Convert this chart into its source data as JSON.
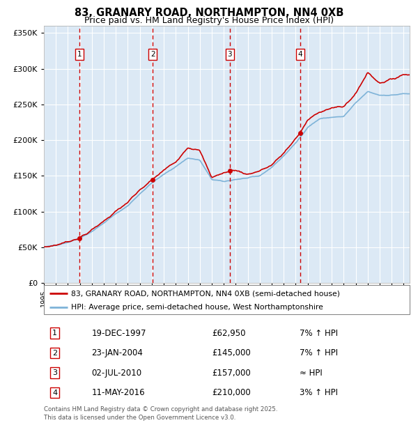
{
  "title": "83, GRANARY ROAD, NORTHAMPTON, NN4 0XB",
  "subtitle": "Price paid vs. HM Land Registry's House Price Index (HPI)",
  "legend_property": "83, GRANARY ROAD, NORTHAMPTON, NN4 0XB (semi-detached house)",
  "legend_hpi": "HPI: Average price, semi-detached house, West Northamptonshire",
  "footer": "Contains HM Land Registry data © Crown copyright and database right 2025.\nThis data is licensed under the Open Government Licence v3.0.",
  "transactions": [
    {
      "num": 1,
      "date": "19-DEC-1997",
      "price": 62950,
      "year": 1997.97,
      "rel": "7% ↑ HPI"
    },
    {
      "num": 2,
      "date": "23-JAN-2004",
      "price": 145000,
      "year": 2004.07,
      "rel": "7% ↑ HPI"
    },
    {
      "num": 3,
      "date": "02-JUL-2010",
      "price": 157000,
      "year": 2010.5,
      "rel": "≈ HPI"
    },
    {
      "num": 4,
      "date": "11-MAY-2016",
      "price": 210000,
      "year": 2016.37,
      "rel": "3% ↑ HPI"
    }
  ],
  "ylim": [
    0,
    360000
  ],
  "xlim_start": 1995,
  "xlim_end": 2025.5,
  "background_color": "#dce9f5",
  "grid_color": "#ffffff",
  "red_line_color": "#cc0000",
  "blue_line_color": "#7eb3d8",
  "dashed_line_color": "#cc0000",
  "marker_color": "#cc0000",
  "hpi_anchors_x": [
    1995,
    1996,
    1997,
    1998,
    1999,
    2000,
    2001,
    2002,
    2003,
    2004,
    2005,
    2006,
    2007,
    2008,
    2009,
    2010,
    2011,
    2012,
    2013,
    2014,
    2015,
    2016,
    2017,
    2018,
    2019,
    2020,
    2021,
    2022,
    2023,
    2024,
    2025
  ],
  "hpi_anchors_y": [
    50000,
    53000,
    57000,
    63000,
    72000,
    84000,
    97000,
    108000,
    125000,
    140000,
    152000,
    163000,
    175000,
    172000,
    145000,
    142000,
    145000,
    147000,
    150000,
    162000,
    178000,
    196000,
    218000,
    230000,
    232000,
    233000,
    252000,
    268000,
    263000,
    263000,
    265000
  ],
  "prop_anchors_x": [
    1995,
    1996,
    1997,
    1997.97,
    1999,
    2000,
    2001,
    2002,
    2003,
    2004.07,
    2005,
    2006,
    2007,
    2008,
    2009,
    2010.5,
    2011,
    2012,
    2013,
    2014,
    2015,
    2016.37,
    2017,
    2018,
    2019,
    2020,
    2021,
    2022,
    2023,
    2024,
    2025
  ],
  "prop_anchors_y": [
    50000,
    53000,
    58000,
    62950,
    74000,
    87000,
    100000,
    113000,
    130000,
    145000,
    158000,
    170000,
    190000,
    185000,
    148000,
    157000,
    158000,
    152000,
    157000,
    165000,
    182000,
    210000,
    228000,
    240000,
    245000,
    247000,
    265000,
    295000,
    280000,
    285000,
    292000
  ]
}
